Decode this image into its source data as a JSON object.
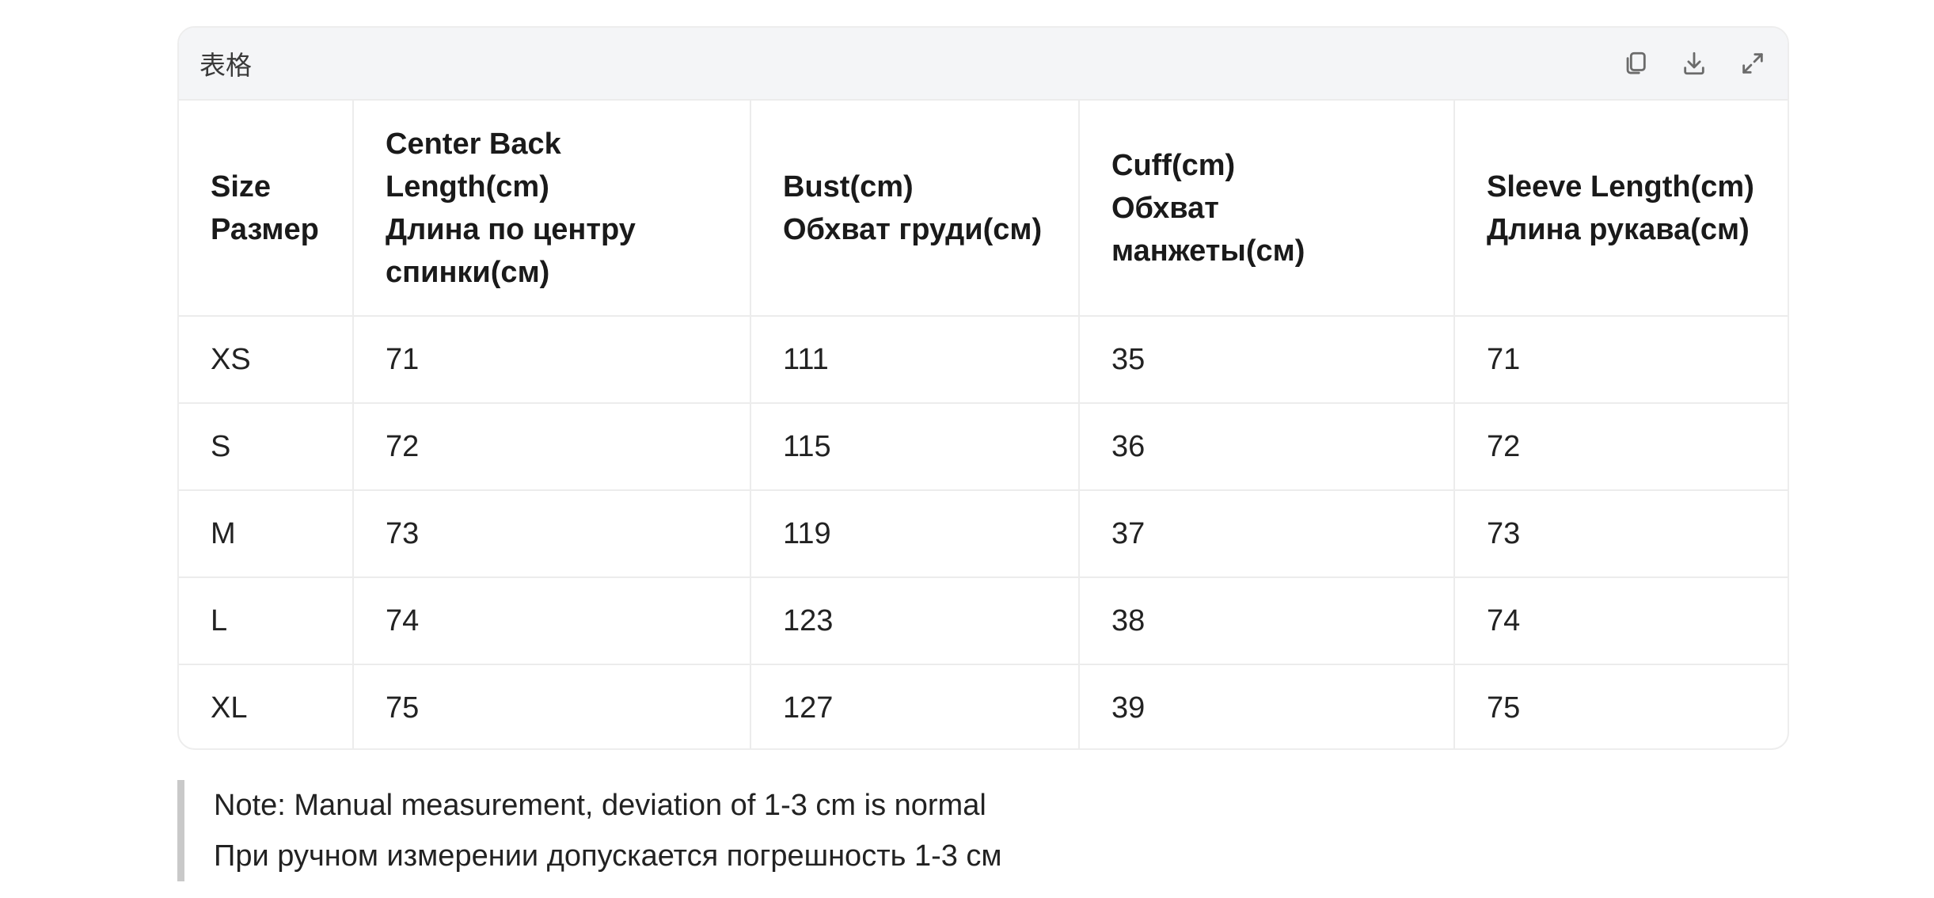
{
  "card": {
    "title": "表格",
    "actions": [
      {
        "name": "copy-icon",
        "label": "copy"
      },
      {
        "name": "download-icon",
        "label": "download"
      },
      {
        "name": "expand-icon",
        "label": "expand"
      }
    ]
  },
  "table": {
    "headers": [
      [
        "Size",
        "Размер"
      ],
      [
        "Center Back Length(cm)",
        "Длина по центру спинки(см)"
      ],
      [
        "Bust(cm)",
        "Обхват груди(см)"
      ],
      [
        "Cuff(cm)",
        "Обхват манжеты(см)"
      ],
      [
        "Sleeve Length(cm)",
        "Длина рукава(см)"
      ]
    ],
    "rows": [
      [
        "XS",
        "71",
        "111",
        "35",
        "71"
      ],
      [
        "S",
        "72",
        "115",
        "36",
        "72"
      ],
      [
        "M",
        "73",
        "119",
        "37",
        "73"
      ],
      [
        "L",
        "74",
        "123",
        "38",
        "74"
      ],
      [
        "XL",
        "75",
        "127",
        "39",
        "75"
      ]
    ]
  },
  "note": {
    "line1": "Note: Manual measurement, deviation of 1-3 cm is normal",
    "line2": "При ручном измерении допускается погрешность 1-3 см"
  }
}
